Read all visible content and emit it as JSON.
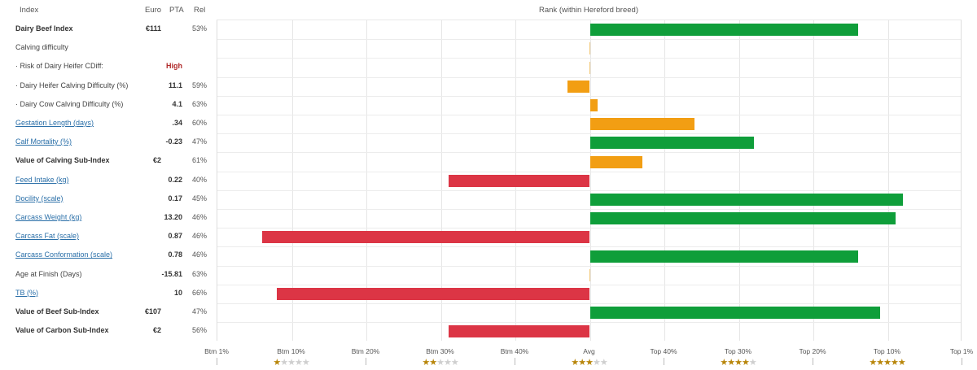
{
  "header": {
    "index": "Index",
    "euro": "Euro",
    "pta": "PTA",
    "rel": "Rel",
    "rank": "Rank (within Hereford breed)"
  },
  "rows": [
    {
      "label": "Dairy Beef Index",
      "style": "bold",
      "euro": "€111",
      "pta": "",
      "rel": "53%"
    },
    {
      "label": "Calving difficulty",
      "style": "plain",
      "euro": "",
      "pta": "",
      "rel": ""
    },
    {
      "label": "· Risk of Dairy Heifer CDiff:",
      "style": "plain",
      "euro": "",
      "pta": "High",
      "pta_high": true,
      "rel": ""
    },
    {
      "label": "· Dairy Heifer Calving Difficulty (%)",
      "style": "plain",
      "euro": "",
      "pta": "11.1",
      "rel": "59%"
    },
    {
      "label": "· Dairy Cow Calving Difficulty (%)",
      "style": "plain",
      "euro": "",
      "pta": "4.1",
      "rel": "63%"
    },
    {
      "label": "Gestation Length (days)",
      "style": "link",
      "euro": "",
      "pta": ".34",
      "rel": "60%"
    },
    {
      "label": "Calf Mortality (%)",
      "style": "link",
      "euro": "",
      "pta": "-0.23",
      "rel": "47%"
    },
    {
      "label": "Value of Calving Sub-Index",
      "style": "bold",
      "euro": "€2",
      "pta": "",
      "rel": "61%"
    },
    {
      "label": "Feed Intake (kg)",
      "style": "link",
      "euro": "",
      "pta": "0.22",
      "rel": "40%"
    },
    {
      "label": "Docility (scale)",
      "style": "link",
      "euro": "",
      "pta": "0.17",
      "rel": "45%"
    },
    {
      "label": "Carcass Weight (kg)",
      "style": "link",
      "euro": "",
      "pta": "13.20",
      "rel": "46%"
    },
    {
      "label": "Carcass Fat (scale)",
      "style": "link",
      "euro": "",
      "pta": "0.87",
      "rel": "46%"
    },
    {
      "label": "Carcass Conformation (scale)",
      "style": "link",
      "euro": "",
      "pta": "0.78",
      "rel": "46%"
    },
    {
      "label": "Age at Finish (Days)",
      "style": "plain",
      "euro": "",
      "pta": "-15.81",
      "rel": "63%"
    },
    {
      "label": "TB (%)",
      "style": "link",
      "euro": "",
      "pta": "10",
      "rel": "66%"
    },
    {
      "label": "Value of Beef Sub-Index",
      "style": "bold",
      "euro": "€107",
      "pta": "",
      "rel": "47%"
    },
    {
      "label": "Value of Carbon Sub-Index",
      "style": "bold",
      "euro": "€2",
      "pta": "",
      "rel": "56%"
    }
  ],
  "colors": {
    "green": "#0f9e3a",
    "orange": "#f29e13",
    "red": "#dc3545",
    "star_on": "#b8860b",
    "star_off": "#cfcfcf",
    "link": "#2a6fa8"
  },
  "chart_data": {
    "type": "bar",
    "orientation": "horizontal-diverging",
    "title": "Rank (within Hereford breed)",
    "x_ticks": [
      "Btm 1%",
      "Btm 10%",
      "Btm 20%",
      "Btm 30%",
      "Btm 40%",
      "Avg",
      "Top 40%",
      "Top 30%",
      "Top 20%",
      "Top 10%",
      "Top 1%"
    ],
    "x_range": [
      -50,
      50
    ],
    "star_ratings": [
      {
        "at_tick": "Btm 10%",
        "stars": 1
      },
      {
        "at_tick": "Btm 30%",
        "stars": 2
      },
      {
        "at_tick": "Avg",
        "stars": 3
      },
      {
        "at_tick": "Top 30%",
        "stars": 4
      },
      {
        "at_tick": "Top 10%",
        "stars": 5
      }
    ],
    "categories": [
      "Dairy Beef Index",
      "Calving difficulty",
      "Risk of Dairy Heifer CDiff",
      "Dairy Heifer Calving Difficulty (%)",
      "Dairy Cow Calving Difficulty (%)",
      "Gestation Length (days)",
      "Calf Mortality (%)",
      "Value of Calving Sub-Index",
      "Feed Intake (kg)",
      "Docility (scale)",
      "Carcass Weight (kg)",
      "Carcass Fat (scale)",
      "Carcass Conformation (scale)",
      "Age at Finish (Days)",
      "TB (%)",
      "Value of Beef Sub-Index",
      "Value of Carbon Sub-Index"
    ],
    "values": [
      36,
      0,
      0,
      -3,
      1,
      14,
      22,
      7,
      -19,
      42,
      41,
      -44,
      36,
      0,
      -42,
      39,
      -19
    ],
    "bar_colors": [
      "green",
      null,
      null,
      "orange",
      "orange",
      "orange",
      "green",
      "orange",
      "red",
      "green",
      "green",
      "red",
      "green",
      null,
      "red",
      "green",
      "red"
    ],
    "grid": true
  }
}
